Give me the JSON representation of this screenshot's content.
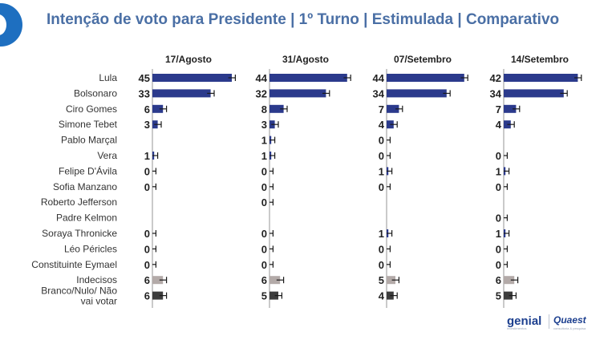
{
  "title": "Intenção de voto para Presidente | 1º Turno | Estimulada | Comparativo",
  "brands": {
    "genial": "genial",
    "genial_sub": "investimentos",
    "quaest": "Quaest",
    "quaest_sub": "consultoria & pesquisa"
  },
  "colors": {
    "candidate": "#2b3a8c",
    "undecided": "#b3aaa8",
    "blank": "#3d3d3d",
    "axis": "#b9b9b9",
    "error": "#1a1a1a"
  },
  "chart_data": {
    "type": "bar",
    "orientation": "horizontal",
    "categories": [
      "Lula",
      "Bolsonaro",
      "Ciro Gomes",
      "Simone Tebet",
      "Pablo Marçal",
      "Vera",
      "Felipe D'Ávila",
      "Sofia Manzano",
      "Roberto Jefferson",
      "Padre Kelmon",
      "Soraya Thronicke",
      "Léo Péricles",
      "Constituinte Eymael",
      "Indecisos",
      "Branco/Nulo/ Não vai votar"
    ],
    "category_types": [
      "candidate",
      "candidate",
      "candidate",
      "candidate",
      "candidate",
      "candidate",
      "candidate",
      "candidate",
      "candidate",
      "candidate",
      "candidate",
      "candidate",
      "candidate",
      "undecided",
      "blank"
    ],
    "series": [
      {
        "name": "17/Agosto",
        "values": [
          45,
          33,
          6,
          3,
          null,
          1,
          0,
          0,
          null,
          null,
          0,
          0,
          0,
          6,
          6
        ]
      },
      {
        "name": "31/Agosto",
        "values": [
          44,
          32,
          8,
          3,
          1,
          1,
          0,
          0,
          0,
          null,
          0,
          0,
          0,
          6,
          5
        ]
      },
      {
        "name": "07/Setembro",
        "values": [
          44,
          34,
          7,
          4,
          0,
          0,
          1,
          0,
          null,
          null,
          1,
          0,
          0,
          5,
          4
        ]
      },
      {
        "name": "14/Setembro",
        "values": [
          42,
          34,
          7,
          4,
          null,
          0,
          1,
          0,
          null,
          0,
          1,
          0,
          0,
          6,
          5
        ]
      }
    ],
    "margin_of_error": 2,
    "xlim": [
      0,
      45
    ],
    "grid": false
  }
}
